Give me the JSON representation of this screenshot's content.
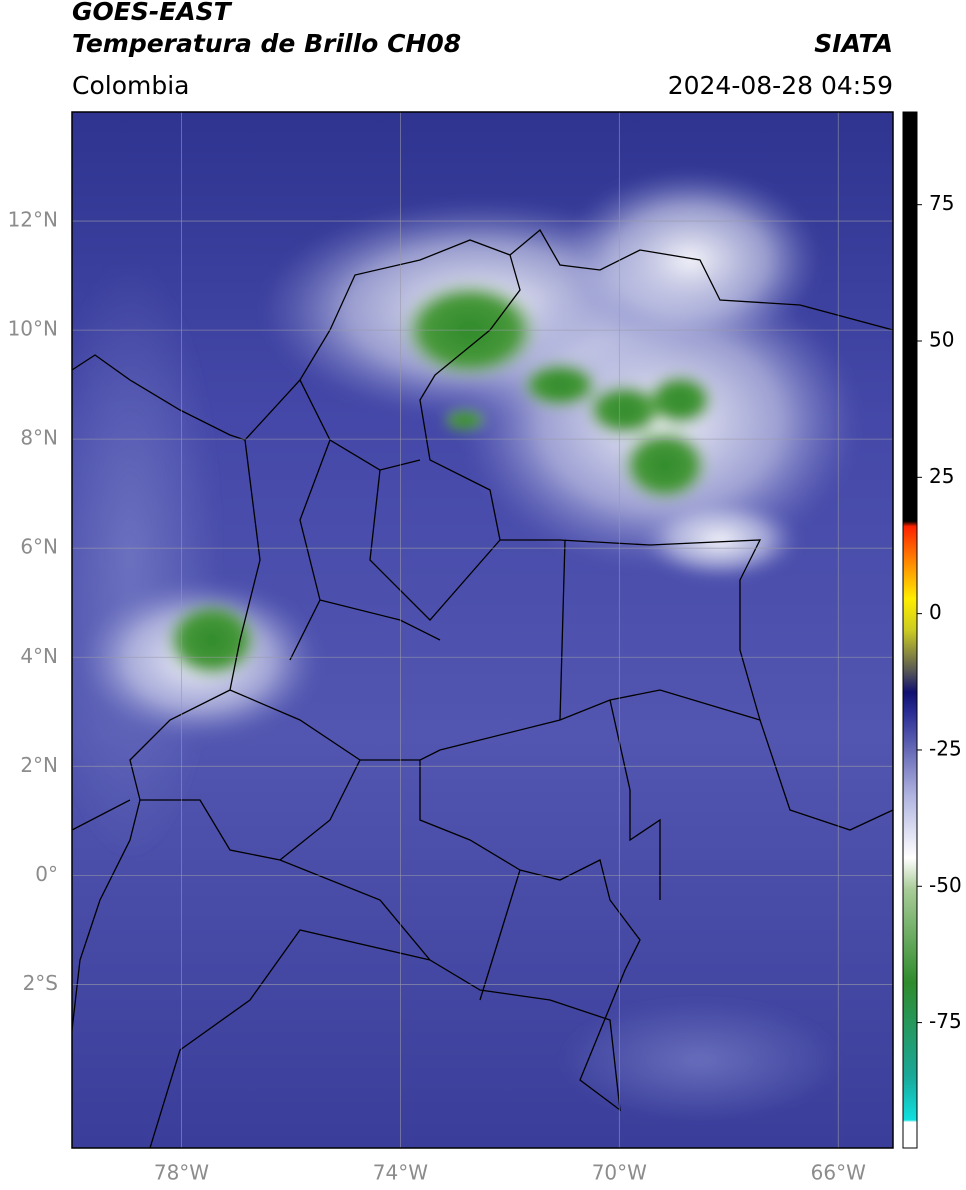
{
  "header": {
    "title": "GOES-EAST",
    "subtitle": "Temperatura de Brillo CH08",
    "region": "Colombia",
    "agency": "SIATA",
    "timestamp": "2024-08-28 04:59"
  },
  "map": {
    "lonlim": [
      -80,
      -65
    ],
    "latlim": [
      -5,
      14
    ],
    "lon_ticks": [
      {
        "value": -78,
        "label": "78°W"
      },
      {
        "value": -74,
        "label": "74°W"
      },
      {
        "value": -70,
        "label": "70°W"
      },
      {
        "value": -66,
        "label": "66°W"
      }
    ],
    "lat_ticks": [
      {
        "value": 12,
        "label": "12°N"
      },
      {
        "value": 10,
        "label": "10°N"
      },
      {
        "value": 8,
        "label": "8°N"
      },
      {
        "value": 6,
        "label": "6°N"
      },
      {
        "value": 4,
        "label": "4°N"
      },
      {
        "value": 2,
        "label": "2°N"
      },
      {
        "value": 0,
        "label": "0°"
      },
      {
        "value": -2,
        "label": "2°S"
      }
    ]
  },
  "colorbar": {
    "lim": [
      -98,
      92
    ],
    "ticks": [
      75,
      50,
      25,
      0,
      -25,
      -50,
      -75
    ]
  }
}
